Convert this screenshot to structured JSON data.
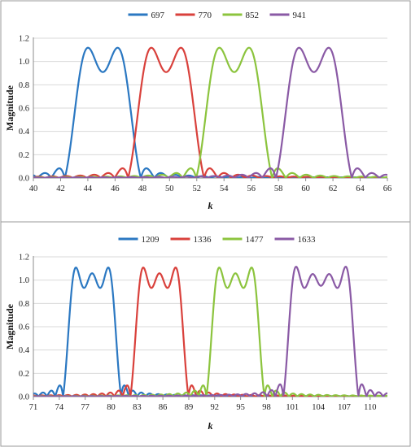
{
  "chart_data": [
    {
      "type": "line",
      "xlabel": "k",
      "ylabel": "Magnitude",
      "xlim": [
        40,
        66
      ],
      "ylim": [
        0,
        1.2
      ],
      "x_ticks": [
        "40",
        "42",
        "44",
        "46",
        "48",
        "50",
        "52",
        "54",
        "56",
        "58",
        "60",
        "62",
        "64",
        "66"
      ],
      "y_ticks": [
        "0.0",
        "0.2",
        "0.4",
        "0.6",
        "0.8",
        "1.0",
        "1.2"
      ],
      "grid": "horizontal",
      "legend_position": "top",
      "series": [
        {
          "name": "697",
          "color": "#2b78c2",
          "center": 45.1,
          "halfwidth": 2.05
        },
        {
          "name": "770",
          "color": "#d9413c",
          "center": 49.75,
          "halfwidth": 2.05
        },
        {
          "name": "852",
          "color": "#8cc43e",
          "center": 54.75,
          "halfwidth": 2.05
        },
        {
          "name": "941",
          "color": "#8a5aa5",
          "center": 60.6,
          "halfwidth": 2.05
        }
      ]
    },
    {
      "type": "line",
      "xlabel": "k",
      "ylabel": "Magnitude",
      "xlim": [
        71,
        112
      ],
      "ylim": [
        0,
        1.2
      ],
      "x_ticks": [
        "71",
        "74",
        "77",
        "80",
        "83",
        "86",
        "89",
        "92",
        "95",
        "98",
        "101",
        "104",
        "107",
        "110"
      ],
      "y_ticks": [
        "0.0",
        "0.2",
        "0.4",
        "0.6",
        "0.8",
        "1.0",
        "1.2"
      ],
      "grid": "horizontal",
      "legend_position": "top",
      "series": [
        {
          "name": "1209",
          "color": "#2b78c2",
          "center": 77.8,
          "halfwidth": 2.7
        },
        {
          "name": "1336",
          "color": "#d9413c",
          "center": 85.6,
          "halfwidth": 2.7
        },
        {
          "name": "1477",
          "color": "#8cc43e",
          "center": 94.4,
          "halfwidth": 2.7
        },
        {
          "name": "1633",
          "color": "#8a5aa5",
          "center": 104.3,
          "halfwidth": 3.7
        }
      ]
    }
  ]
}
